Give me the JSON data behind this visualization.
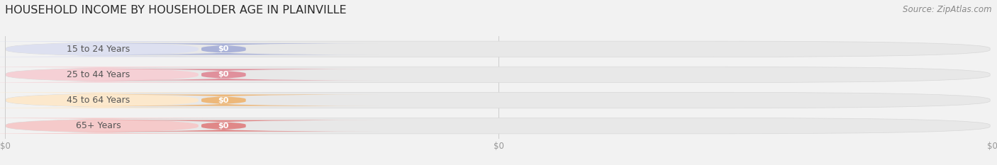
{
  "title": "HOUSEHOLD INCOME BY HOUSEHOLDER AGE IN PLAINVILLE",
  "source": "Source: ZipAtlas.com",
  "categories": [
    "15 to 24 Years",
    "25 to 44 Years",
    "45 to 64 Years",
    "65+ Years"
  ],
  "values": [
    0,
    0,
    0,
    0
  ],
  "bar_colors": [
    "#aab2d8",
    "#e0909c",
    "#edb87a",
    "#e08888"
  ],
  "label_bg_colors": [
    "#dde0f0",
    "#f5d0d5",
    "#fce8cc",
    "#f5caca"
  ],
  "bg_color": "#f2f2f2",
  "bar_bg_color": "#e8e8e8",
  "bar_bg_border_color": "#d8d8d8",
  "title_fontsize": 11.5,
  "source_fontsize": 8.5,
  "label_fontsize": 9,
  "value_fontsize": 8,
  "tick_fontsize": 8.5,
  "tick_color": "#999999",
  "label_text_color": "#555555",
  "value_text_color": "#ffffff"
}
